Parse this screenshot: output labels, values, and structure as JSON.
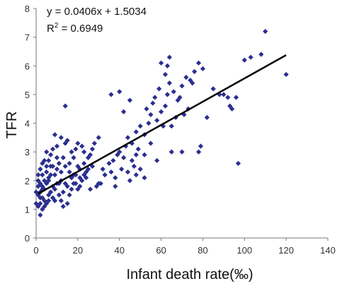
{
  "chart_data": {
    "type": "scatter",
    "xlabel": "Infant death rate(‰)",
    "ylabel": "TFR",
    "xlim": [
      0,
      140
    ],
    "ylim": [
      0,
      8
    ],
    "xticks": [
      0,
      20,
      40,
      60,
      80,
      100,
      120,
      140
    ],
    "yticks": [
      0,
      1,
      2,
      3,
      4,
      5,
      6,
      7,
      8
    ],
    "grid": false,
    "colors": {
      "points": "#2b2f8f",
      "trendline": "#000000",
      "axis": "#777777"
    },
    "annotations": {
      "equation": "y = 0.0406x + 1.5034",
      "r2_prefix": "R",
      "r2_superscript": "2",
      "r2_value": " = 0.6949"
    },
    "trendline": {
      "slope": 0.0406,
      "intercept": 1.5034,
      "x_range": [
        1,
        120
      ]
    },
    "points": [
      [
        2,
        0.8
      ],
      [
        3,
        1.0
      ],
      [
        1,
        1.1
      ],
      [
        2,
        1.2
      ],
      [
        4,
        1.3
      ],
      [
        3,
        1.4
      ],
      [
        5,
        1.2
      ],
      [
        1,
        1.5
      ],
      [
        2,
        1.6
      ],
      [
        4,
        1.7
      ],
      [
        6,
        1.5
      ],
      [
        3,
        1.8
      ],
      [
        5,
        1.9
      ],
      [
        2,
        1.9
      ],
      [
        7,
        1.6
      ],
      [
        4,
        2.0
      ],
      [
        6,
        2.1
      ],
      [
        8,
        1.8
      ],
      [
        3,
        2.2
      ],
      [
        5,
        2.3
      ],
      [
        9,
        1.7
      ],
      [
        10,
        1.9
      ],
      [
        2,
        2.4
      ],
      [
        7,
        2.5
      ],
      [
        1,
        2.0
      ],
      [
        3,
        1.7
      ],
      [
        6,
        1.3
      ],
      [
        8,
        1.4
      ],
      [
        11,
        1.5
      ],
      [
        12,
        1.3
      ],
      [
        13,
        1.6
      ],
      [
        9,
        2.2
      ],
      [
        10,
        2.4
      ],
      [
        12,
        2.0
      ],
      [
        14,
        1.9
      ],
      [
        15,
        1.8
      ],
      [
        16,
        1.5
      ],
      [
        11,
        2.6
      ],
      [
        13,
        2.8
      ],
      [
        7,
        2.9
      ],
      [
        5,
        3.0
      ],
      [
        4,
        2.7
      ],
      [
        8,
        3.1
      ],
      [
        10,
        3.2
      ],
      [
        14,
        3.3
      ],
      [
        12,
        3.5
      ],
      [
        15,
        3.4
      ],
      [
        9,
        3.6
      ],
      [
        6,
        2.0
      ],
      [
        17,
        2.1
      ],
      [
        18,
        1.9
      ],
      [
        16,
        2.3
      ],
      [
        19,
        2.2
      ],
      [
        20,
        2.5
      ],
      [
        18,
        2.8
      ],
      [
        17,
        3.0
      ],
      [
        19,
        3.1
      ],
      [
        20,
        3.3
      ],
      [
        21,
        2.4
      ],
      [
        22,
        2.0
      ],
      [
        23,
        2.6
      ],
      [
        24,
        2.3
      ],
      [
        22,
        3.2
      ],
      [
        21,
        1.8
      ],
      [
        15,
        1.2
      ],
      [
        13,
        1.1
      ],
      [
        20,
        1.7
      ],
      [
        25,
        2.8
      ],
      [
        26,
        2.9
      ],
      [
        27,
        2.5
      ],
      [
        24,
        2.1
      ],
      [
        23,
        3.0
      ],
      [
        27,
        3.1
      ],
      [
        28,
        3.3
      ],
      [
        30,
        3.5
      ],
      [
        29,
        1.8
      ],
      [
        31,
        1.9
      ],
      [
        32,
        2.4
      ],
      [
        33,
        2.2
      ],
      [
        35,
        2.6
      ],
      [
        36,
        2.3
      ],
      [
        37,
        2.7
      ],
      [
        38,
        2.1
      ],
      [
        39,
        2.9
      ],
      [
        40,
        3.0
      ],
      [
        41,
        2.4
      ],
      [
        42,
        2.8
      ],
      [
        43,
        3.2
      ],
      [
        44,
        2.3
      ],
      [
        45,
        2.0
      ],
      [
        46,
        2.7
      ],
      [
        47,
        2.5
      ],
      [
        48,
        2.2
      ],
      [
        50,
        2.4
      ],
      [
        52,
        2.1
      ],
      [
        49,
        3.1
      ],
      [
        44,
        3.5
      ],
      [
        46,
        3.3
      ],
      [
        48,
        3.7
      ],
      [
        50,
        3.9
      ],
      [
        52,
        3.6
      ],
      [
        54,
        4.0
      ],
      [
        53,
        4.5
      ],
      [
        55,
        4.3
      ],
      [
        56,
        4.7
      ],
      [
        58,
        4.1
      ],
      [
        57,
        4.9
      ],
      [
        59,
        5.2
      ],
      [
        60,
        4.4
      ],
      [
        61,
        3.9
      ],
      [
        62,
        4.6
      ],
      [
        63,
        5.0
      ],
      [
        64,
        5.4
      ],
      [
        62,
        5.7
      ],
      [
        66,
        5.1
      ],
      [
        68,
        4.8
      ],
      [
        70,
        5.3
      ],
      [
        72,
        5.6
      ],
      [
        74,
        5.5
      ],
      [
        76,
        5.8
      ],
      [
        78,
        6.1
      ],
      [
        80,
        5.9
      ],
      [
        75,
        5.4
      ],
      [
        73,
        4.5
      ],
      [
        71,
        4.3
      ],
      [
        69,
        4.9
      ],
      [
        67,
        4.2
      ],
      [
        65,
        3.9
      ],
      [
        60,
        6.1
      ],
      [
        63,
        6.0
      ],
      [
        64,
        6.3
      ],
      [
        45,
        4.8
      ],
      [
        42,
        4.4
      ],
      [
        36,
        5.0
      ],
      [
        40,
        5.1
      ],
      [
        82,
        4.2
      ],
      [
        85,
        5.2
      ],
      [
        88,
        5.0
      ],
      [
        90,
        5.0
      ],
      [
        92,
        4.9
      ],
      [
        93,
        4.6
      ],
      [
        94,
        4.5
      ],
      [
        96,
        4.9
      ],
      [
        97,
        2.6
      ],
      [
        100,
        6.2
      ],
      [
        103,
        6.3
      ],
      [
        108,
        6.4
      ],
      [
        110,
        7.2
      ],
      [
        120,
        5.7
      ],
      [
        78,
        3.0
      ],
      [
        79,
        3.2
      ],
      [
        70,
        3.0
      ],
      [
        65,
        3.0
      ],
      [
        55,
        3.3
      ],
      [
        58,
        2.7
      ],
      [
        52,
        2.9
      ],
      [
        48,
        2.9
      ],
      [
        38,
        1.8
      ],
      [
        30,
        1.9
      ],
      [
        26,
        1.7
      ],
      [
        14,
        4.6
      ],
      [
        18,
        2.2
      ],
      [
        11,
        1.9
      ],
      [
        7,
        2.2
      ],
      [
        9,
        1.3
      ],
      [
        4,
        1.1
      ],
      [
        2,
        1.4
      ],
      [
        1,
        1.8
      ],
      [
        0,
        1.2
      ],
      [
        0,
        1.6
      ],
      [
        1,
        2.2
      ],
      [
        3,
        2.6
      ],
      [
        5,
        2.5
      ],
      [
        6,
        2.7
      ],
      [
        8,
        2.5
      ],
      [
        10,
        2.8
      ],
      [
        12,
        2.3
      ],
      [
        14,
        2.5
      ],
      [
        16,
        2.6
      ],
      [
        17,
        1.7
      ],
      [
        19,
        1.9
      ],
      [
        21,
        2.1
      ],
      [
        23,
        2.2
      ],
      [
        25,
        2.4
      ]
    ]
  }
}
